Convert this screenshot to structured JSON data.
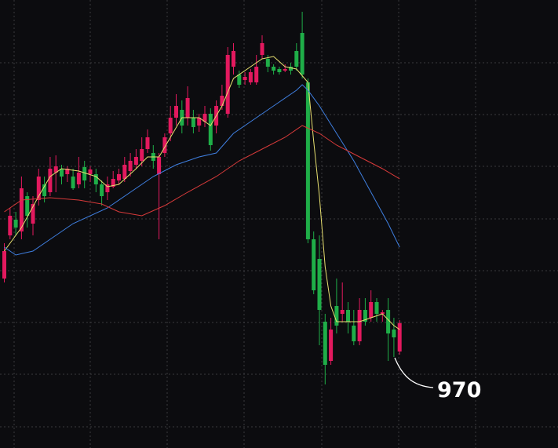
{
  "chart_data": {
    "type": "candlestick",
    "annotation": "970",
    "up_color": "#e3195e",
    "down_color": "#1fae48",
    "ylim": [
      861,
      1432
    ],
    "open": [
      1077,
      1132,
      1152,
      1137,
      1182,
      1147,
      1177,
      1197,
      1187,
      1212,
      1217,
      1210,
      1207,
      1197,
      1219,
      1210,
      1210,
      1197,
      1187,
      1194,
      1202,
      1204,
      1214,
      1222,
      1227,
      1242,
      1237,
      1210,
      1237,
      1262,
      1282,
      1292,
      1282,
      1282,
      1272,
      1277,
      1287,
      1272,
      1297,
      1287,
      1347,
      1337,
      1330,
      1327,
      1327,
      1362,
      1357,
      1347,
      1344,
      1342,
      1347,
      1367,
      1390,
      1327,
      1127,
      1102,
      1022,
      972,
      1042,
      1032,
      1037,
      1017,
      997,
      1037,
      1027,
      1047,
      1032,
      1037,
      1012,
      984
    ],
    "high": [
      1122,
      1167,
      1162,
      1207,
      1187,
      1182,
      1217,
      1207,
      1232,
      1234,
      1222,
      1220,
      1217,
      1232,
      1227,
      1220,
      1217,
      1202,
      1207,
      1214,
      1217,
      1232,
      1237,
      1242,
      1257,
      1267,
      1247,
      1237,
      1262,
      1297,
      1312,
      1304,
      1322,
      1292,
      1287,
      1297,
      1294,
      1304,
      1324,
      1372,
      1377,
      1342,
      1340,
      1344,
      1362,
      1387,
      1362,
      1350,
      1347,
      1350,
      1352,
      1377,
      1417,
      1332,
      1137,
      1132,
      1032,
      1027,
      1077,
      1072,
      1047,
      1037,
      1052,
      1052,
      1062,
      1052,
      1037,
      1052,
      1027,
      1024
    ],
    "low": [
      1072,
      1127,
      1132,
      1127,
      1142,
      1132,
      1170,
      1174,
      1182,
      1187,
      1197,
      1200,
      1190,
      1192,
      1192,
      1200,
      1187,
      1170,
      1177,
      1192,
      1197,
      1200,
      1207,
      1217,
      1220,
      1237,
      1217,
      1127,
      1232,
      1252,
      1272,
      1262,
      1272,
      1262,
      1264,
      1270,
      1240,
      1262,
      1292,
      1282,
      1337,
      1320,
      1324,
      1324,
      1324,
      1357,
      1340,
      1337,
      1337,
      1340,
      1337,
      1342,
      1332,
      1122,
      1057,
      992,
      942,
      967,
      1007,
      1022,
      1007,
      992,
      992,
      1017,
      1022,
      1022,
      1022,
      972,
      977,
      980
    ],
    "close": [
      1112,
      1157,
      1142,
      1192,
      1157,
      1172,
      1207,
      1182,
      1217,
      1220,
      1207,
      1217,
      1192,
      1212,
      1202,
      1216,
      1197,
      1182,
      1197,
      1204,
      1210,
      1222,
      1227,
      1232,
      1242,
      1257,
      1227,
      1232,
      1257,
      1282,
      1297,
      1272,
      1307,
      1270,
      1282,
      1287,
      1247,
      1297,
      1310,
      1362,
      1367,
      1324,
      1334,
      1340,
      1347,
      1377,
      1347,
      1342,
      1340,
      1344,
      1342,
      1347,
      1337,
      1127,
      1062,
      1037,
      967,
      1012,
      1017,
      1037,
      1022,
      997,
      1037,
      1022,
      1047,
      1032,
      1034,
      1007,
      1002,
      1020
    ],
    "series": [
      {
        "color": "#e8e070",
        "x": [
          0,
          3,
          6,
          8,
          10,
          13,
          16,
          18,
          20,
          23,
          25,
          27,
          29,
          31,
          34,
          36,
          38,
          40,
          42,
          45,
          47,
          49,
          51,
          53,
          54,
          55,
          56,
          57,
          58,
          60,
          62,
          64,
          66,
          68,
          69
        ],
        "values": [
          1112,
          1142,
          1182,
          1207,
          1217,
          1214,
          1207,
          1194,
          1197,
          1217,
          1232,
          1232,
          1257,
          1282,
          1282,
          1272,
          1297,
          1332,
          1342,
          1357,
          1360,
          1347,
          1344,
          1327,
          1252,
          1182,
          1092,
          1042,
          1022,
          1022,
          1022,
          1027,
          1032,
          1017,
          1012
        ]
      },
      {
        "color": "#3f7fe0",
        "x": [
          0,
          2,
          5,
          8,
          12,
          18,
          22,
          26,
          30,
          34,
          37,
          40,
          44,
          48,
          51,
          52,
          53,
          55,
          58,
          61,
          64,
          67,
          69
        ],
        "values": [
          1117,
          1107,
          1112,
          1127,
          1147,
          1167,
          1187,
          1207,
          1222,
          1232,
          1237,
          1262,
          1282,
          1302,
          1317,
          1324,
          1317,
          1297,
          1262,
          1227,
          1187,
          1147,
          1117
        ]
      },
      {
        "color": "#d83a3a",
        "x": [
          0,
          3,
          8,
          13,
          17,
          20,
          24,
          28,
          32,
          37,
          41,
          45,
          49,
          52,
          55,
          58,
          62,
          66,
          69
        ],
        "values": [
          1162,
          1177,
          1180,
          1177,
          1172,
          1162,
          1157,
          1170,
          1187,
          1207,
          1227,
          1242,
          1257,
          1272,
          1262,
          1247,
          1232,
          1217,
          1204
        ]
      }
    ]
  }
}
